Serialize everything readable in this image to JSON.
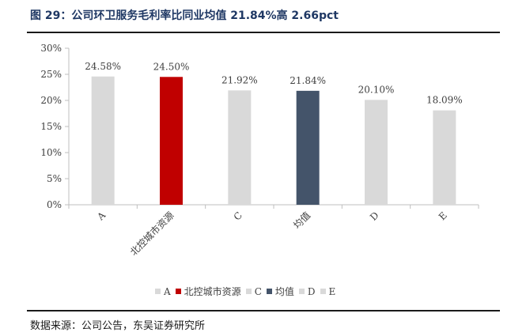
{
  "title": "图 29：公司环卫服务毛利率比同业均值 21.84%高 2.66pct",
  "source": "数据来源：公司公告，东吴证券研究所",
  "chart_data": {
    "type": "bar",
    "categories": [
      "A",
      "北控城市资源",
      "C",
      "均值",
      "D",
      "E"
    ],
    "values": [
      24.58,
      24.5,
      21.92,
      21.84,
      20.1,
      18.09
    ],
    "data_labels": [
      "24.58%",
      "24.50%",
      "21.92%",
      "21.84%",
      "20.10%",
      "18.09%"
    ],
    "colors": [
      "#d9d9d9",
      "#c00000",
      "#d9d9d9",
      "#44546a",
      "#d9d9d9",
      "#d9d9d9"
    ],
    "ylim": [
      0,
      30
    ],
    "yticks": [
      0,
      5,
      10,
      15,
      20,
      25,
      30
    ],
    "ytick_labels": [
      "0%",
      "5%",
      "10%",
      "15%",
      "20%",
      "25%",
      "30%"
    ],
    "grid": false,
    "legend_position": "bottom"
  }
}
